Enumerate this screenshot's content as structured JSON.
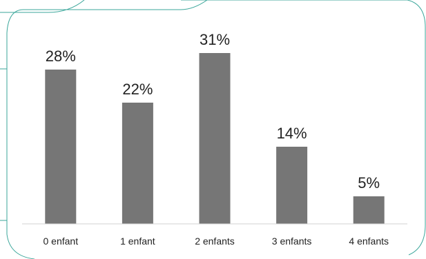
{
  "chart_data": {
    "type": "bar",
    "categories": [
      "0 enfant",
      "1 enfant",
      "2 enfants",
      "3 enfants",
      "4 enfants"
    ],
    "values": [
      28,
      22,
      31,
      14,
      5
    ],
    "value_labels": [
      "28%",
      "22%",
      "31%",
      "14%",
      "5%"
    ],
    "ylim": [
      0,
      40
    ],
    "grid": false,
    "legend": "none",
    "colors": {
      "bar": "#767676",
      "frame": "#3aa69a",
      "text": "#222222"
    }
  }
}
